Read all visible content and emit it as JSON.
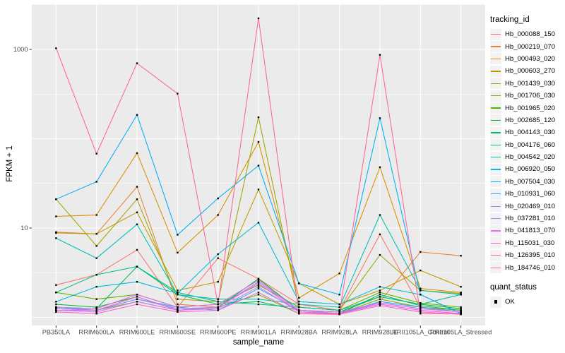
{
  "chart_data": {
    "type": "line",
    "title": "",
    "xlabel": "sample_name",
    "ylabel": "FPKM + 1",
    "y_scale": "log10",
    "ylim": [
      0.85,
      3200
    ],
    "y_tick_values": [
      1000,
      10
    ],
    "y_tick_labels": [
      "1000",
      "10"
    ],
    "y_gridlines_major": [
      1,
      10,
      100,
      1000
    ],
    "y_gridlines_minor": [
      3.162,
      31.62,
      316.2,
      3162
    ],
    "grid": "on",
    "legend_position": "right",
    "point_shape": "square",
    "point_color": "#000000",
    "panel_bg": "#EBEBEB",
    "grid_color": "#FFFFFF",
    "tick_label_color": "#4D4D4D",
    "categories": [
      "PB350LA",
      "RRIM600LA",
      "RRIM600LE",
      "RRIM600SE",
      "RRIM600PE",
      "RRIM901LA",
      "RRIM928BA",
      "RRIM928LA",
      "RRIM928LE",
      "RRII105LA_Control",
      "RRII105LA_Stressed"
    ],
    "series": [
      {
        "name": "Hb_000088_150",
        "color": "#F8766D",
        "values": [
          2.3,
          3.0,
          5.7,
          1.3,
          4.6,
          2.7,
          1.4,
          1.2,
          8.5,
          1.3,
          1.2
        ]
      },
      {
        "name": "Hb_000219_070",
        "color": "#EA8331",
        "values": [
          9.0,
          8.6,
          29,
          1.4,
          1.3,
          2.5,
          1.2,
          1.1,
          1.5,
          5.4,
          4.9
        ]
      },
      {
        "name": "Hb_000493_020",
        "color": "#D89000",
        "values": [
          13.5,
          14,
          69,
          5.3,
          14,
          92,
          1.65,
          3.1,
          48,
          2.1,
          1.9
        ]
      },
      {
        "name": "Hb_000603_270",
        "color": "#C09B00",
        "values": [
          8.8,
          8.6,
          15,
          2.0,
          2.5,
          27,
          2.4,
          1.4,
          2.0,
          3.35,
          2.2
        ]
      },
      {
        "name": "Hb_001439_030",
        "color": "#A3A500",
        "values": [
          21,
          6.3,
          21,
          1.6,
          1.5,
          174,
          1.3,
          1.2,
          5.0,
          2.0,
          1.85
        ]
      },
      {
        "name": "Hb_001706_030",
        "color": "#85AD00",
        "values": [
          1.25,
          1.2,
          1.5,
          1.2,
          1.3,
          1.8,
          1.1,
          1.1,
          1.6,
          1.3,
          1.2
        ]
      },
      {
        "name": "Hb_001965_020",
        "color": "#5BB300",
        "values": [
          1.9,
          1.6,
          1.8,
          1.3,
          1.4,
          2.3,
          1.3,
          1.2,
          1.9,
          1.45,
          1.3
        ]
      },
      {
        "name": "Hb_002685_120",
        "color": "#00B81F",
        "values": [
          1.4,
          1.3,
          1.7,
          1.2,
          1.3,
          2.7,
          1.2,
          1.15,
          1.7,
          1.4,
          1.25
        ]
      },
      {
        "name": "Hb_004143_030",
        "color": "#00BD5F",
        "values": [
          1.3,
          1.25,
          3.7,
          1.8,
          1.4,
          1.5,
          1.2,
          1.1,
          1.8,
          1.35,
          1.2
        ]
      },
      {
        "name": "Hb_004176_060",
        "color": "#00C08B",
        "values": [
          1.9,
          3.0,
          3.7,
          1.9,
          1.5,
          1.4,
          1.3,
          1.2,
          1.7,
          1.4,
          1.8
        ]
      },
      {
        "name": "Hb_004542_020",
        "color": "#00C0B4",
        "values": [
          7.7,
          4.6,
          11,
          1.8,
          1.6,
          1.6,
          1.4,
          1.3,
          14,
          2.0,
          1.8
        ]
      },
      {
        "name": "Hb_006920_050",
        "color": "#00BCD8",
        "values": [
          1.5,
          2.2,
          2.5,
          1.85,
          5.1,
          11.5,
          1.5,
          1.4,
          2.2,
          1.8,
          1.1
        ]
      },
      {
        "name": "Hb_007504_030",
        "color": "#00B0F6",
        "values": [
          21,
          33,
          185,
          8.4,
          21.5,
          50,
          2.4,
          1.8,
          170,
          1.8,
          1.1
        ]
      },
      {
        "name": "Hb_010931_060",
        "color": "#29A3FF",
        "values": [
          1.3,
          1.2,
          1.6,
          1.3,
          1.2,
          2.1,
          1.2,
          1.1,
          1.5,
          1.3,
          1.15
        ]
      },
      {
        "name": "Hb_020469_010",
        "color": "#9590FF",
        "values": [
          1.25,
          1.2,
          1.6,
          1.25,
          1.3,
          2.5,
          1.2,
          1.1,
          1.45,
          1.25,
          1.15
        ]
      },
      {
        "name": "Hb_037281_010",
        "color": "#C77CFF",
        "values": [
          1.2,
          1.15,
          1.5,
          1.2,
          1.25,
          2.2,
          1.15,
          1.1,
          1.4,
          1.2,
          1.1
        ]
      },
      {
        "name": "Hb_041813_070",
        "color": "#E76BF3",
        "values": [
          1.3,
          1.25,
          1.8,
          1.3,
          1.4,
          2.6,
          1.2,
          1.15,
          1.45,
          1.25,
          1.15
        ]
      },
      {
        "name": "Hb_115031_030",
        "color": "#FA62DB",
        "values": [
          1.2,
          1.2,
          1.7,
          1.2,
          1.3,
          2.4,
          1.15,
          1.1,
          1.4,
          1.2,
          1.1
        ]
      },
      {
        "name": "Hb_126395_010",
        "color": "#FF61C9",
        "values": [
          1.15,
          1.1,
          1.4,
          1.15,
          1.2,
          1.9,
          1.1,
          1.08,
          1.35,
          1.15,
          1.08
        ]
      },
      {
        "name": "Hb_184746_010",
        "color": "#FF6598",
        "values": [
          1030,
          68,
          700,
          320,
          1.4,
          2230,
          1.1,
          1.1,
          870,
          1.1,
          1.1
        ]
      }
    ]
  },
  "legend": {
    "tracking_title": "tracking_id",
    "quant_title": "quant_status",
    "quant_items": [
      {
        "label": "OK"
      }
    ]
  }
}
